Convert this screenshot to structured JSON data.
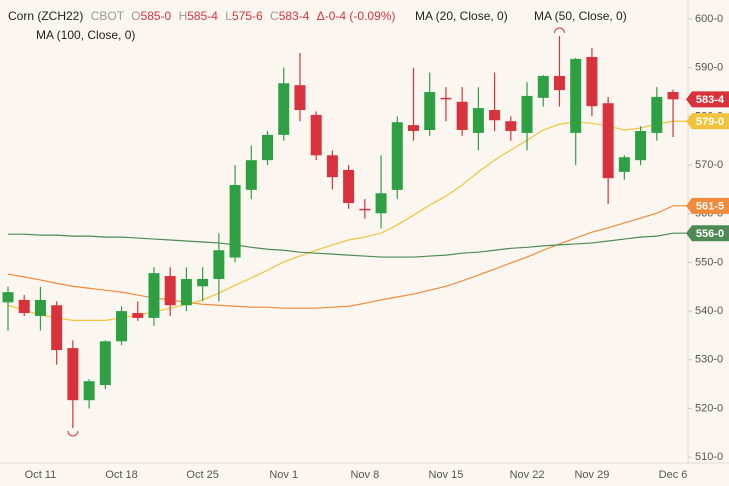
{
  "chart_data": {
    "type": "candlestick",
    "header": {
      "symbol": "Corn (ZCH22)",
      "exchange": "CBOT",
      "ohlc": [
        {
          "label": "O",
          "value": "585-0"
        },
        {
          "label": "H",
          "value": "585-4"
        },
        {
          "label": "L",
          "value": "575-6"
        },
        {
          "label": "C",
          "value": "583-4"
        }
      ],
      "change": "Δ-0-4 (-0.09%)"
    },
    "categories": [
      null,
      null,
      "Oct 11",
      null,
      null,
      null,
      null,
      "Oct 18",
      null,
      null,
      null,
      null,
      "Oct 25",
      null,
      null,
      null,
      null,
      "Nov 1",
      null,
      null,
      null,
      null,
      "Nov 8",
      null,
      null,
      null,
      null,
      "Nov 15",
      null,
      null,
      null,
      null,
      "Nov 22",
      null,
      null,
      null,
      "Nov 29",
      null,
      null,
      null,
      null,
      "Dec 6"
    ],
    "open": [
      541.8,
      542.3,
      539.0,
      541.2,
      532.4,
      521.7,
      524.8,
      533.8,
      539.6,
      538.6,
      547.2,
      541.2,
      545.1,
      546.6,
      551.0,
      564.9,
      571.0,
      576.2,
      586.4,
      580.3,
      572.0,
      569.0,
      561.0,
      560.1,
      564.9,
      578.2,
      577.2,
      583.8,
      583.0,
      576.6,
      581.3,
      579.0,
      576.6,
      583.8,
      588.3,
      576.6,
      592.2,
      582.7,
      568.6,
      571.0,
      576.6,
      585.0
    ],
    "high": [
      545.0,
      543.3,
      545.0,
      542.0,
      534.0,
      526.0,
      534.0,
      541.0,
      542.0,
      549.0,
      549.0,
      549.0,
      549.0,
      556.0,
      570.0,
      574.0,
      577.0,
      590.0,
      593.0,
      581.0,
      573.0,
      570.0,
      563.0,
      572.0,
      580.0,
      590.0,
      589.0,
      586.0,
      586.0,
      586.0,
      589.0,
      580.0,
      587.0,
      588.5,
      596.5,
      592.0,
      594.0,
      584.0,
      572.0,
      578.0,
      586.0,
      585.5
    ],
    "low": [
      536.0,
      539.0,
      536.0,
      529.0,
      516.0,
      520.0,
      524.0,
      533.0,
      538.0,
      537.0,
      539.0,
      540.0,
      542.0,
      542.0,
      550.0,
      563.0,
      570.0,
      575.0,
      579.0,
      571.0,
      565.0,
      561.0,
      559.0,
      557.0,
      563.0,
      575.0,
      576.0,
      579.0,
      576.0,
      573.0,
      577.0,
      575.0,
      573.0,
      582.0,
      582.0,
      570.0,
      580.0,
      562.0,
      567.0,
      570.0,
      575.0,
      575.75
    ],
    "close": [
      543.9,
      539.6,
      542.3,
      532.0,
      521.7,
      525.6,
      533.8,
      540.0,
      538.6,
      547.8,
      541.2,
      546.6,
      546.6,
      552.5,
      565.9,
      571.0,
      576.2,
      586.8,
      581.3,
      572.0,
      567.5,
      562.2,
      560.8,
      564.2,
      578.8,
      577.0,
      585.0,
      583.6,
      577.2,
      581.7,
      579.2,
      577.0,
      584.2,
      588.3,
      585.4,
      591.8,
      582.1,
      567.3,
      571.6,
      577.0,
      584.0,
      583.5
    ],
    "last_close_label": "583-4",
    "up_color": "#2ea043",
    "down_color": "#d8333c",
    "series": [
      {
        "name": "MA (20, Close, 0)",
        "color": "#f2c43d",
        "last_label": "579-0",
        "values": [
          541.2,
          540.2,
          539.2,
          538.6,
          538.1,
          538.1,
          538.1,
          538.6,
          539.2,
          539.8,
          540.6,
          541.4,
          542.3,
          543.7,
          545.3,
          546.8,
          548.4,
          550.1,
          551.3,
          552.5,
          553.6,
          554.6,
          555.2,
          556.0,
          557.7,
          559.7,
          561.8,
          563.6,
          565.9,
          568.6,
          571.0,
          573.1,
          575.1,
          577.2,
          578.4,
          578.8,
          578.6,
          578.0,
          577.2,
          577.6,
          578.4,
          579.0
        ]
      },
      {
        "name": "MA (50, Close, 0)",
        "color": "#f08a3c",
        "last_label": "561-5",
        "values": [
          547.6,
          547.0,
          546.4,
          545.7,
          545.1,
          544.7,
          544.3,
          543.9,
          543.3,
          542.7,
          542.3,
          541.8,
          541.4,
          541.2,
          541.0,
          540.8,
          540.8,
          540.6,
          540.6,
          540.6,
          540.8,
          541.0,
          541.6,
          542.3,
          542.9,
          543.5,
          544.3,
          545.1,
          546.2,
          547.4,
          548.6,
          549.9,
          551.1,
          552.5,
          553.8,
          555.0,
          556.2,
          557.1,
          558.1,
          559.1,
          560.1,
          561.625
        ]
      },
      {
        "name": "MA (100, Close, 0)",
        "color": "#4e8a55",
        "last_label": "556-0",
        "values": [
          555.8,
          555.8,
          555.6,
          555.6,
          555.4,
          555.4,
          555.2,
          555.2,
          555.0,
          554.8,
          554.6,
          554.4,
          554.2,
          554.0,
          553.6,
          553.1,
          552.7,
          552.5,
          552.1,
          551.9,
          551.7,
          551.5,
          551.3,
          551.1,
          551.1,
          551.1,
          551.3,
          551.5,
          551.9,
          552.1,
          552.5,
          552.9,
          553.1,
          553.4,
          553.6,
          553.8,
          554.0,
          554.4,
          554.8,
          555.2,
          555.4,
          556.0
        ]
      }
    ],
    "ylim": [
      508.8,
      603.9
    ],
    "yticks": [
      {
        "value": 510,
        "label": "510-0"
      },
      {
        "value": 520,
        "label": "520-0"
      },
      {
        "value": 530,
        "label": "530-0"
      },
      {
        "value": 540,
        "label": "540-0"
      },
      {
        "value": 550,
        "label": "550-0"
      },
      {
        "value": 560,
        "label": "560-0"
      },
      {
        "value": 570,
        "label": "570-0"
      },
      {
        "value": 580,
        "label": "580-0"
      },
      {
        "value": 590,
        "label": "590-0"
      },
      {
        "value": 600,
        "label": "600-0"
      }
    ]
  }
}
